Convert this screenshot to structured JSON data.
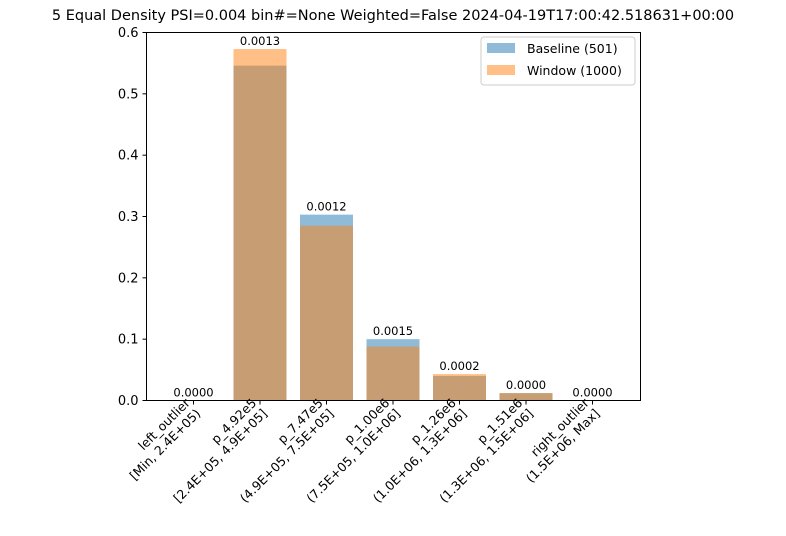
{
  "chart_data": {
    "type": "bar",
    "title": "5 Equal Density PSI=0.004 bin#=None Weighted=False 2024-04-19T17:00:42.518631+00:00",
    "xlabel": "",
    "ylabel": "",
    "ylim": [
      0,
      0.6
    ],
    "yticks": [
      "0.0",
      "0.1",
      "0.2",
      "0.3",
      "0.4",
      "0.5",
      "0.6"
    ],
    "categories": [
      [
        "left_outlier",
        "[Min, 2.4E+05)"
      ],
      [
        "p_4.92e5",
        "[2.4E+05, 4.9E+05]"
      ],
      [
        "p_7.47e5",
        "(4.9E+05, 7.5E+05]"
      ],
      [
        "p_1.00e6",
        "(7.5E+05, 1.0E+06]"
      ],
      [
        "p_1.26e6",
        "(1.0E+06, 1.3E+06]"
      ],
      [
        "p_1.51e6",
        "(1.3E+06, 1.5E+06]"
      ],
      [
        "right_outlier",
        "(1.5E+06, Max]"
      ]
    ],
    "series": [
      {
        "name": "Baseline (501)",
        "color": "#1f77b4",
        "opacity": 0.5,
        "values": [
          0.0,
          0.546,
          0.303,
          0.1,
          0.04,
          0.012,
          0.0
        ]
      },
      {
        "name": "Window (1000)",
        "color": "#ff7f0e",
        "opacity": 0.5,
        "values": [
          0.0,
          0.573,
          0.285,
          0.088,
          0.043,
          0.012,
          0.0
        ]
      }
    ],
    "bar_labels": [
      "0.0000",
      "0.0013",
      "0.0012",
      "0.0015",
      "0.0002",
      "0.0000",
      "0.0000"
    ],
    "legend_position": "upper-right",
    "grid": false
  }
}
